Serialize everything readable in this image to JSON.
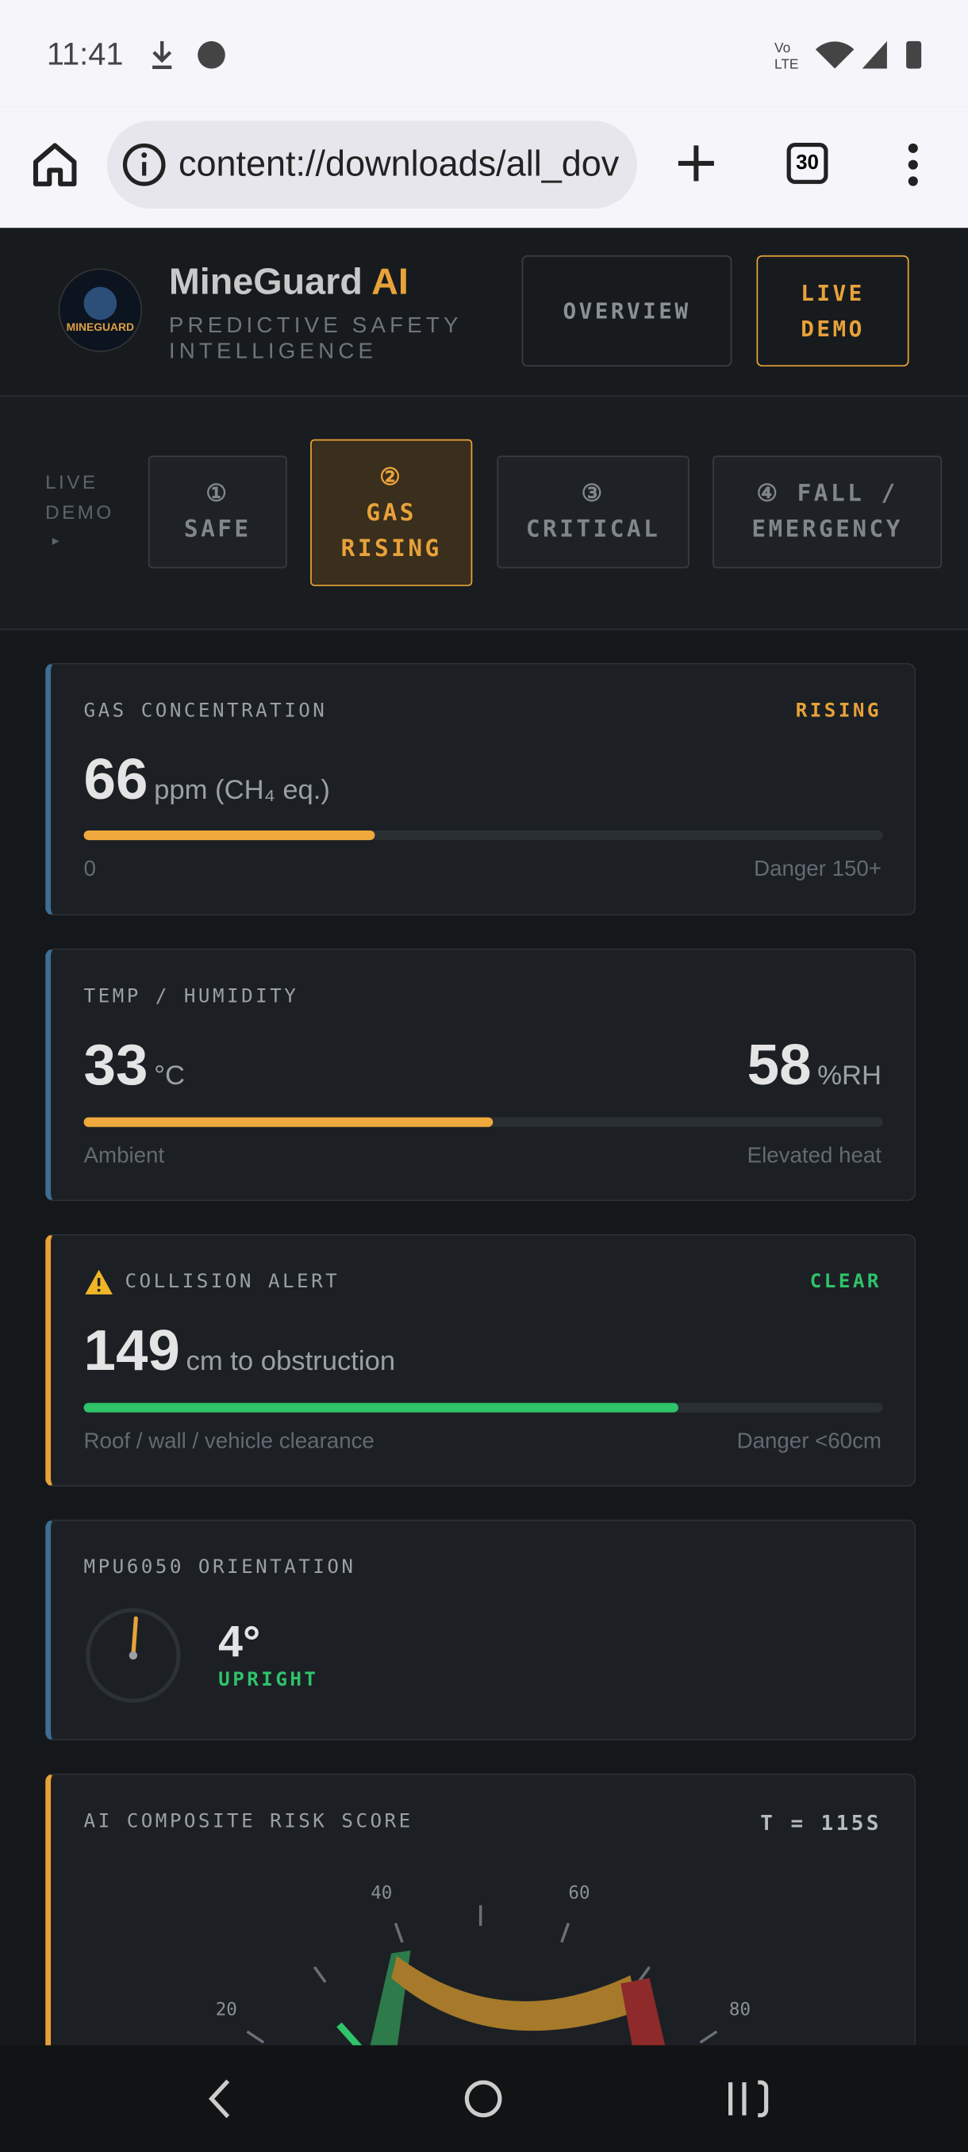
{
  "status": {
    "time": "11:41"
  },
  "browser": {
    "url": "content://downloads/all_dov",
    "tab_count": "30"
  },
  "header": {
    "brand": "MineGuard",
    "brand_accent": "AI",
    "tagline": "PREDICTIVE SAFETY INTELLIGENCE",
    "nav": [
      "OVERVIEW",
      "LIVE DEMO"
    ]
  },
  "demo": {
    "label": "LIVE DEMO",
    "arrow": "▸",
    "tabs": [
      {
        "icon": "①",
        "label": "SAFE"
      },
      {
        "icon": "②",
        "label": "GAS RISING"
      },
      {
        "icon": "③",
        "label": "CRITICAL"
      },
      {
        "icon": "④",
        "label": "FALL / EMERGENCY"
      }
    ]
  },
  "cards": {
    "gas": {
      "title": "GAS CONCENTRATION",
      "status": "RISING",
      "value": "66",
      "unit": "ppm (CH₄ eq.)",
      "left": "0",
      "right": "Danger 150+"
    },
    "temp": {
      "title": "TEMP / HUMIDITY",
      "value": "33",
      "unit": "°C",
      "humidity": "58",
      "humidity_unit": "%RH",
      "left": "Ambient",
      "right": "Elevated heat"
    },
    "collision": {
      "title": "COLLISION ALERT",
      "status": "CLEAR",
      "value": "149",
      "unit": "cm to obstruction",
      "left": "Roof / wall / vehicle clearance",
      "right": "Danger <60cm"
    },
    "orientation": {
      "title": "MPU6050 ORIENTATION",
      "value": "4°",
      "status": "UPRIGHT"
    },
    "risk": {
      "title": "AI COMPOSITE RISK SCORE",
      "time": "T = 115S",
      "gauge_labels": [
        "20",
        "40",
        "60",
        "80"
      ]
    }
  }
}
